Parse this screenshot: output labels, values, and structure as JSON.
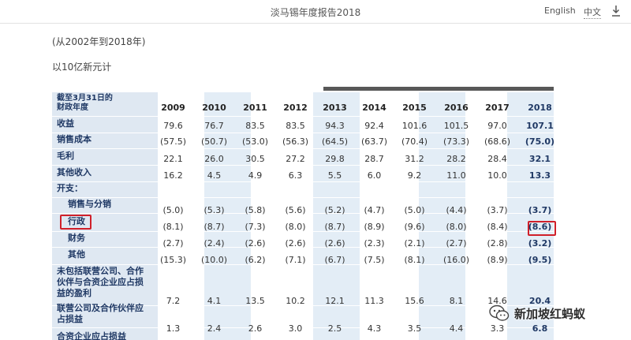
{
  "header": {
    "title": "淡马锡年度报告2018",
    "lang_en": "English",
    "lang_zh": "中文",
    "download_icon": "download-icon"
  },
  "notes": {
    "period": "(从2002年到2018年)",
    "unit": "以10亿新元计"
  },
  "table": {
    "header_label_line1": "截至3月31日的",
    "header_label_line2": "财政年度",
    "years": [
      "2009",
      "2010",
      "2011",
      "2012",
      "2013",
      "2014",
      "2015",
      "2016",
      "2017",
      "2018"
    ],
    "rows": [
      {
        "label": "收益",
        "values": [
          "79.6",
          "76.7",
          "83.5",
          "83.5",
          "94.3",
          "92.4",
          "101.6",
          "101.5",
          "97.0",
          "107.1"
        ]
      },
      {
        "label": "销售成本",
        "values": [
          "(57.5)",
          "(50.7)",
          "(53.0)",
          "(56.3)",
          "(64.5)",
          "(63.7)",
          "(70.4)",
          "(73.3)",
          "(68.6)",
          "(75.0)"
        ]
      },
      {
        "label": "毛利",
        "values": [
          "22.1",
          "26.0",
          "30.5",
          "27.2",
          "29.8",
          "28.7",
          "31.2",
          "28.2",
          "28.4",
          "32.1"
        ]
      },
      {
        "label": "其他收入",
        "values": [
          "16.2",
          "4.5",
          "4.9",
          "6.3",
          "5.5",
          "6.0",
          "9.2",
          "11.0",
          "10.0",
          "13.3"
        ]
      },
      {
        "label": "开支：",
        "values": []
      },
      {
        "label": "销售与分销",
        "values": [
          "(5.0)",
          "(5.3)",
          "(5.8)",
          "(5.6)",
          "(5.2)",
          "(4.7)",
          "(5.0)",
          "(4.4)",
          "(3.7)",
          "(3.7)"
        ]
      },
      {
        "label": "行政",
        "values": [
          "(8.1)",
          "(8.7)",
          "(7.3)",
          "(8.0)",
          "(8.7)",
          "(8.9)",
          "(9.6)",
          "(8.0)",
          "(8.4)",
          "(8.6)"
        ]
      },
      {
        "label": "财务",
        "values": [
          "(2.7)",
          "(2.4)",
          "(2.6)",
          "(2.6)",
          "(2.6)",
          "(2.3)",
          "(2.1)",
          "(2.7)",
          "(2.8)",
          "(3.2)"
        ]
      },
      {
        "label": "其他",
        "values": [
          "(15.3)",
          "(10.0)",
          "(6.2)",
          "(7.1)",
          "(6.7)",
          "(7.5)",
          "(8.1)",
          "(16.0)",
          "(8.9)",
          "(9.5)"
        ]
      },
      {
        "label_lines": [
          "未包括联营公司、合作",
          "伙伴与合资企业应占损",
          "益的盈利"
        ],
        "values": [
          "7.2",
          "4.1",
          "13.5",
          "10.2",
          "12.1",
          "11.3",
          "15.6",
          "8.1",
          "14.6",
          "20.4"
        ]
      },
      {
        "label_lines": [
          "联营公司及合作伙伴应",
          "占损益"
        ],
        "values": [
          "1.3",
          "2.4",
          "2.6",
          "3.0",
          "2.5",
          "4.3",
          "3.5",
          "4.4",
          "3.3",
          "6.8"
        ]
      },
      {
        "label": "合资企业应占损益",
        "values": []
      }
    ]
  },
  "watermark": {
    "text": "新加坡红蚂蚁",
    "icon": "wechat-icon"
  },
  "colors": {
    "accent_navy": "#1f3864",
    "highlight_red": "#d0202a",
    "band_blue": "#e3edf6",
    "label_bg": "#dfe8f2"
  }
}
